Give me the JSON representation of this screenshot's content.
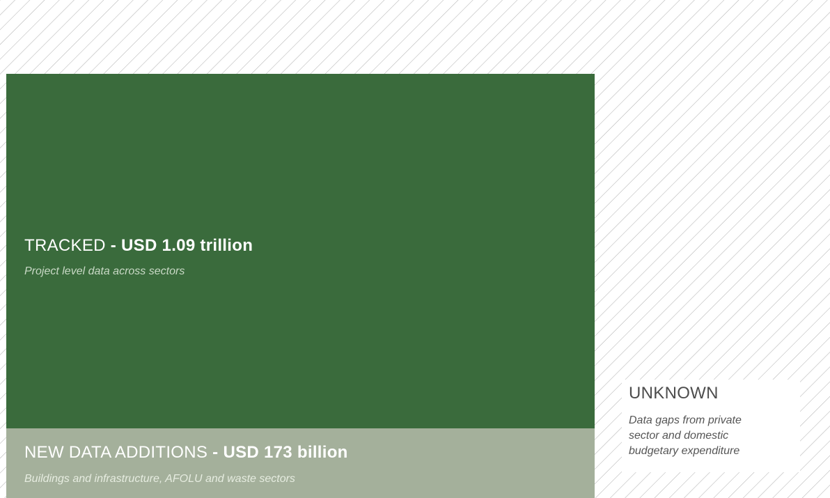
{
  "colors": {
    "tracked": "#3a6b3c",
    "new_data": "#a4b09b",
    "hatch_lines": "#b5b5b5",
    "background": "#ffffff"
  },
  "tracked": {
    "label": "TRACKED",
    "separator": " - ",
    "amount": "USD 1.09 trillion",
    "description": "Project level data across sectors"
  },
  "new_data": {
    "label": "NEW DATA ADDITIONS",
    "separator": " - ",
    "amount": "USD 173 billion",
    "description": "Buildings and infrastructure, AFOLU and waste sectors"
  },
  "unknown": {
    "label": "UNKNOWN",
    "description_lines": [
      "Data gaps from private",
      "sector and domestic",
      "budgetary expenditure"
    ]
  }
}
